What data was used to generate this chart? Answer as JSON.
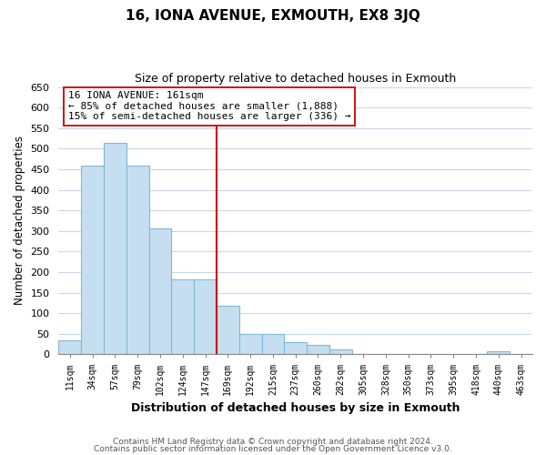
{
  "title": "16, IONA AVENUE, EXMOUTH, EX8 3JQ",
  "subtitle": "Size of property relative to detached houses in Exmouth",
  "xlabel": "Distribution of detached houses by size in Exmouth",
  "ylabel": "Number of detached properties",
  "bar_labels": [
    "11sqm",
    "34sqm",
    "57sqm",
    "79sqm",
    "102sqm",
    "124sqm",
    "147sqm",
    "169sqm",
    "192sqm",
    "215sqm",
    "237sqm",
    "260sqm",
    "282sqm",
    "305sqm",
    "328sqm",
    "350sqm",
    "373sqm",
    "395sqm",
    "418sqm",
    "440sqm",
    "463sqm"
  ],
  "bar_values": [
    35,
    458,
    515,
    458,
    307,
    183,
    183,
    118,
    50,
    50,
    30,
    22,
    13,
    0,
    0,
    0,
    0,
    0,
    0,
    8,
    0
  ],
  "bar_color": "#c6dff0",
  "bar_edge_color": "#7fb8d8",
  "vline_x": 6.5,
  "vline_color": "#cc0000",
  "annotation_line1": "16 IONA AVENUE: 161sqm",
  "annotation_line2": "← 85% of detached houses are smaller (1,888)",
  "annotation_line3": "15% of semi-detached houses are larger (336) →",
  "annotation_box_color": "#ffffff",
  "annotation_box_edge": "#cc0000",
  "ylim": [
    0,
    650
  ],
  "yticks": [
    0,
    50,
    100,
    150,
    200,
    250,
    300,
    350,
    400,
    450,
    500,
    550,
    600,
    650
  ],
  "footnote1": "Contains HM Land Registry data © Crown copyright and database right 2024.",
  "footnote2": "Contains public sector information licensed under the Open Government Licence v3.0.",
  "bg_color": "#ffffff",
  "grid_color": "#c8d8e8"
}
